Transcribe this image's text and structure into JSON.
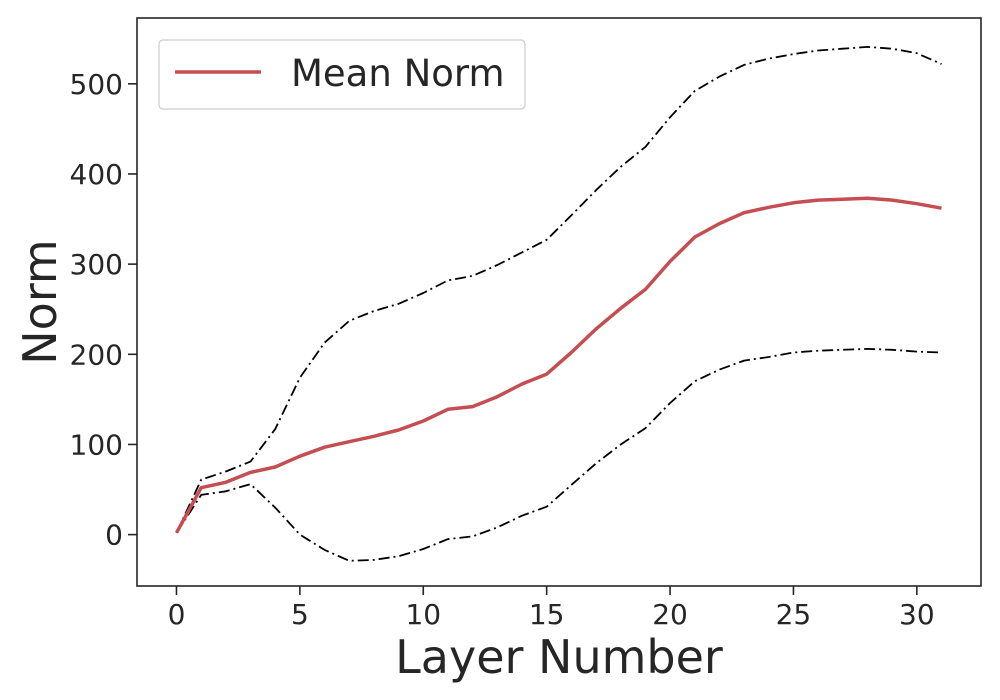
{
  "chart_data": {
    "type": "line",
    "title": "",
    "xlabel": "Layer Number",
    "ylabel": "Norm",
    "xlim": [
      -1.6,
      32.6
    ],
    "ylim": [
      -57,
      573
    ],
    "xticks": [
      0,
      5,
      10,
      15,
      20,
      25,
      30
    ],
    "yticks": [
      0,
      100,
      200,
      300,
      400,
      500
    ],
    "grid": false,
    "legend_position": "top-left",
    "x": [
      0,
      1,
      2,
      3,
      4,
      5,
      6,
      7,
      8,
      9,
      10,
      11,
      12,
      13,
      14,
      15,
      16,
      17,
      18,
      19,
      20,
      21,
      22,
      23,
      24,
      25,
      26,
      27,
      28,
      29,
      30,
      31
    ],
    "series": [
      {
        "name": "Mean Norm",
        "color": "#c44e52",
        "style": "solid",
        "in_legend": true,
        "values": [
          2,
          52,
          58,
          69,
          75,
          87,
          97,
          103,
          109,
          116,
          126,
          139,
          142,
          153,
          167,
          178,
          202,
          228,
          251,
          272,
          303,
          330,
          345,
          357,
          363,
          368,
          371,
          372,
          373,
          371,
          367,
          362
        ]
      },
      {
        "name": "Upper Bound",
        "color": "#000000",
        "style": "dashdot",
        "in_legend": false,
        "values": [
          2,
          61,
          70,
          81,
          117,
          174,
          213,
          237,
          248,
          256,
          268,
          282,
          287,
          299,
          313,
          327,
          354,
          382,
          408,
          430,
          463,
          492,
          508,
          521,
          528,
          533,
          537,
          539,
          541,
          539,
          534,
          522
        ]
      },
      {
        "name": "Lower Bound",
        "color": "#000000",
        "style": "dashdot",
        "in_legend": false,
        "values": [
          2,
          44,
          48,
          56,
          30,
          0,
          -17,
          -29,
          -28,
          -24,
          -16,
          -5,
          -2,
          8,
          21,
          31,
          55,
          79,
          100,
          118,
          146,
          170,
          183,
          193,
          197,
          202,
          204,
          205,
          206,
          205,
          203,
          202
        ]
      }
    ]
  }
}
